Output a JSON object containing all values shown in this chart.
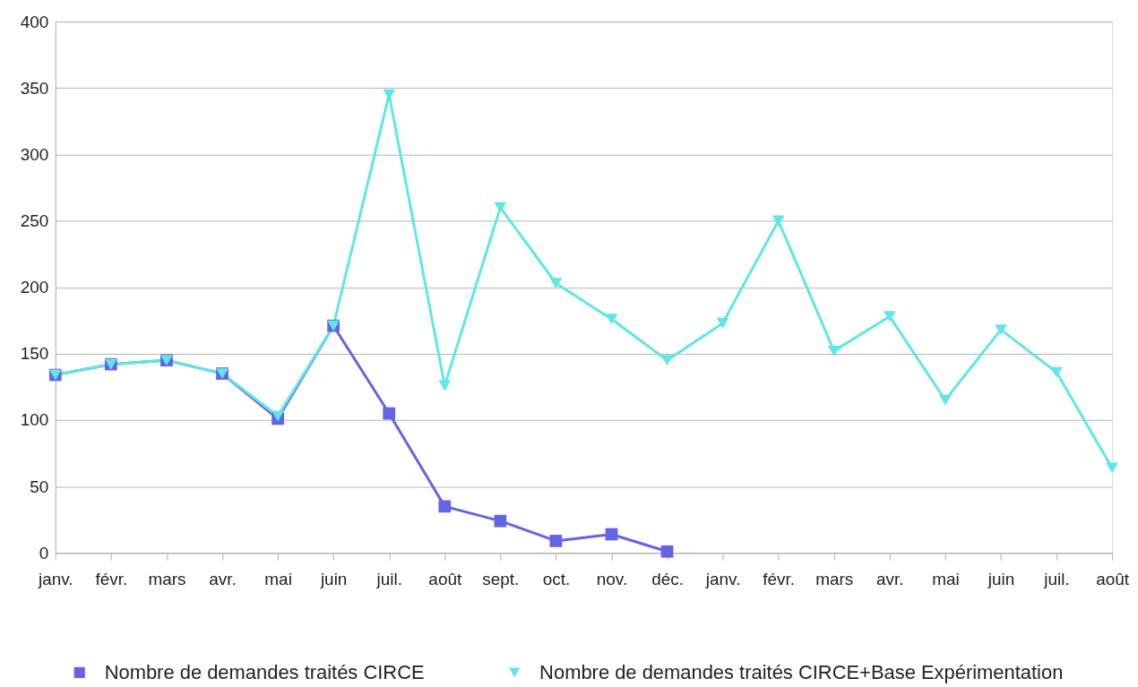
{
  "chart_data": {
    "type": "line",
    "categories": [
      "janv.",
      "févr.",
      "mars",
      "avr.",
      "mai",
      "juin",
      "juil.",
      "août",
      "sept.",
      "oct.",
      "nov.",
      "déc.",
      "janv.",
      "févr.",
      "mars",
      "avr.",
      "mai",
      "juin",
      "juil.",
      "août"
    ],
    "series": [
      {
        "name": "Nombre de demandes traités CIRCE",
        "color": "#6464e6",
        "marker": "square",
        "values": [
          134,
          142,
          145,
          135,
          101,
          171,
          105,
          35,
          24,
          9,
          14,
          1,
          null,
          null,
          null,
          null,
          null,
          null,
          null,
          null
        ]
      },
      {
        "name": "Nombre de demandes traités CIRCE+Base Expérimentation",
        "color": "#60e6e6",
        "marker": "triangle",
        "values": [
          134,
          142,
          145,
          135,
          103,
          171,
          345,
          126,
          260,
          203,
          176,
          145,
          173,
          250,
          152,
          178,
          115,
          168,
          136,
          64
        ]
      }
    ],
    "ylim": [
      0,
      400
    ],
    "yticks": [
      0,
      50,
      100,
      150,
      200,
      250,
      300,
      350,
      400
    ],
    "grid": "y",
    "legend": "bottom"
  }
}
